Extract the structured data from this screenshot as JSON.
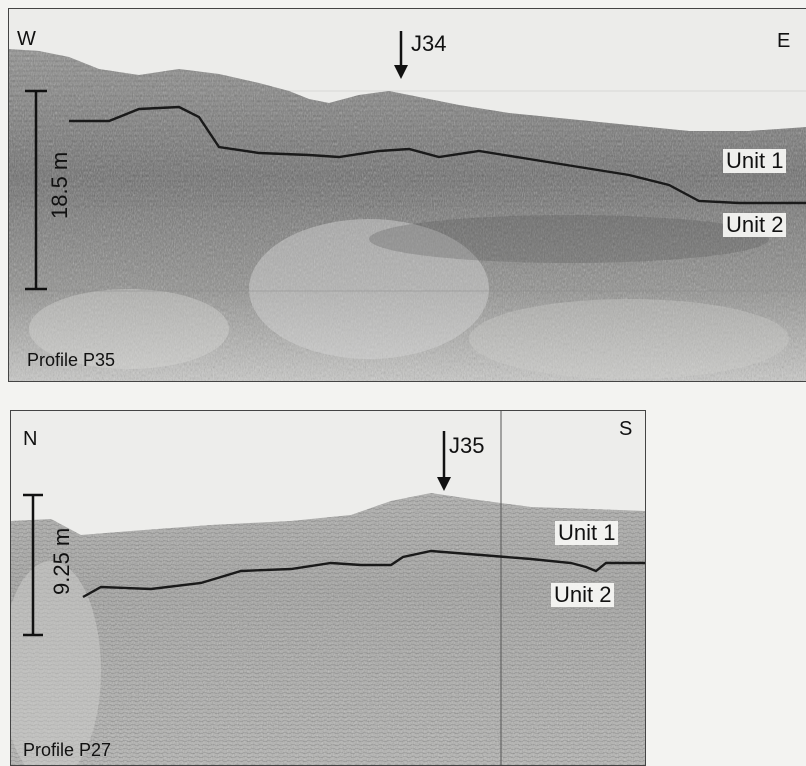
{
  "profile_top": {
    "name": "Profile P35",
    "direction_left": "W",
    "direction_right": "E",
    "core_label": "J34",
    "scale_label": "18.5 m",
    "unit_upper": "Unit 1",
    "unit_lower": "Unit 2"
  },
  "profile_bottom": {
    "name": "Profile P27",
    "direction_left": "N",
    "direction_right": "S",
    "core_label": "J35",
    "scale_label": "9.25 m",
    "unit_upper": "Unit 1",
    "unit_lower": "Unit 2"
  },
  "colors": {
    "background": "#f3f3f1",
    "sediment_light": "#bdbdbb",
    "sediment_dark": "#5c5c5c",
    "boundary_line": "#1a1a1a"
  }
}
